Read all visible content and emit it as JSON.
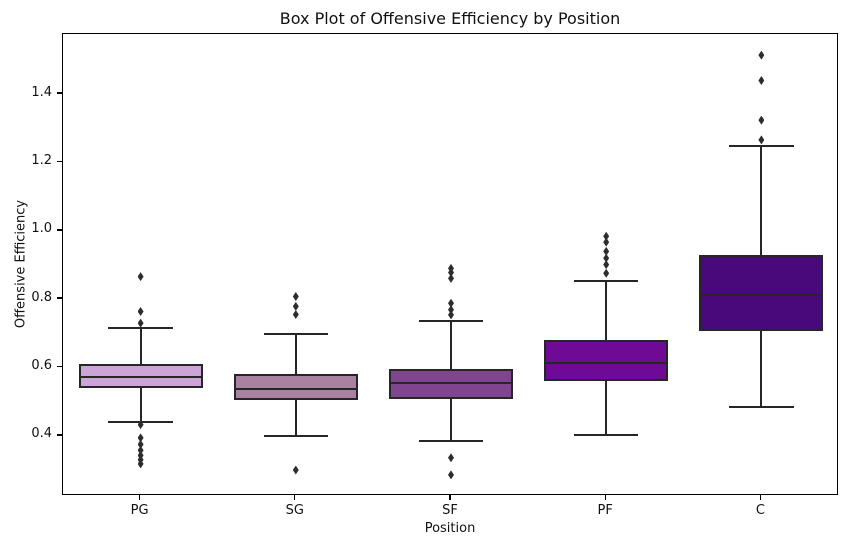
{
  "chart_data": {
    "type": "box",
    "title": "Box Plot of Offensive Efficiency by Position",
    "xlabel": "Position",
    "ylabel": "Offensive Efficiency",
    "categories": [
      "PG",
      "SG",
      "SF",
      "PF",
      "C"
    ],
    "ylim": [
      0.224,
      1.576
    ],
    "yticks": [
      0.4,
      0.6,
      0.8,
      1.0,
      1.2,
      1.4
    ],
    "grid": false,
    "legend": null,
    "box_width_frac": 0.8,
    "cap_width_frac": 0.52,
    "line_color": "#262626",
    "flier_color": "#2d2d2d",
    "series": [
      {
        "name": "PG",
        "color": "#cda4d8",
        "whislo": 0.44,
        "q1": 0.54,
        "med": 0.571,
        "q3": 0.61,
        "whishi": 0.717,
        "fliers": [
          0.866,
          0.764,
          0.73,
          0.433,
          0.394,
          0.375,
          0.358,
          0.343,
          0.33,
          0.318
        ]
      },
      {
        "name": "SG",
        "color": "#a982a2",
        "whislo": 0.4,
        "q1": 0.505,
        "med": 0.536,
        "q3": 0.58,
        "whishi": 0.699,
        "fliers": [
          0.808,
          0.779,
          0.755,
          0.3
        ]
      },
      {
        "name": "SF",
        "color": "#7f468f",
        "whislo": 0.385,
        "q1": 0.507,
        "med": 0.554,
        "q3": 0.595,
        "whishi": 0.735,
        "fliers": [
          0.89,
          0.878,
          0.861,
          0.788,
          0.769,
          0.754,
          0.336,
          0.286
        ]
      },
      {
        "name": "PF",
        "color": "#6f0a96",
        "whislo": 0.403,
        "q1": 0.561,
        "med": 0.613,
        "q3": 0.681,
        "whishi": 0.854,
        "fliers": [
          0.984,
          0.967,
          0.94,
          0.92,
          0.901,
          0.876
        ]
      },
      {
        "name": "C",
        "color": "#480a7a",
        "whislo": 0.483,
        "q1": 0.707,
        "med": 0.813,
        "q3": 0.928,
        "whishi": 1.249,
        "fliers": [
          1.514,
          1.44,
          1.324,
          1.266
        ]
      }
    ]
  }
}
